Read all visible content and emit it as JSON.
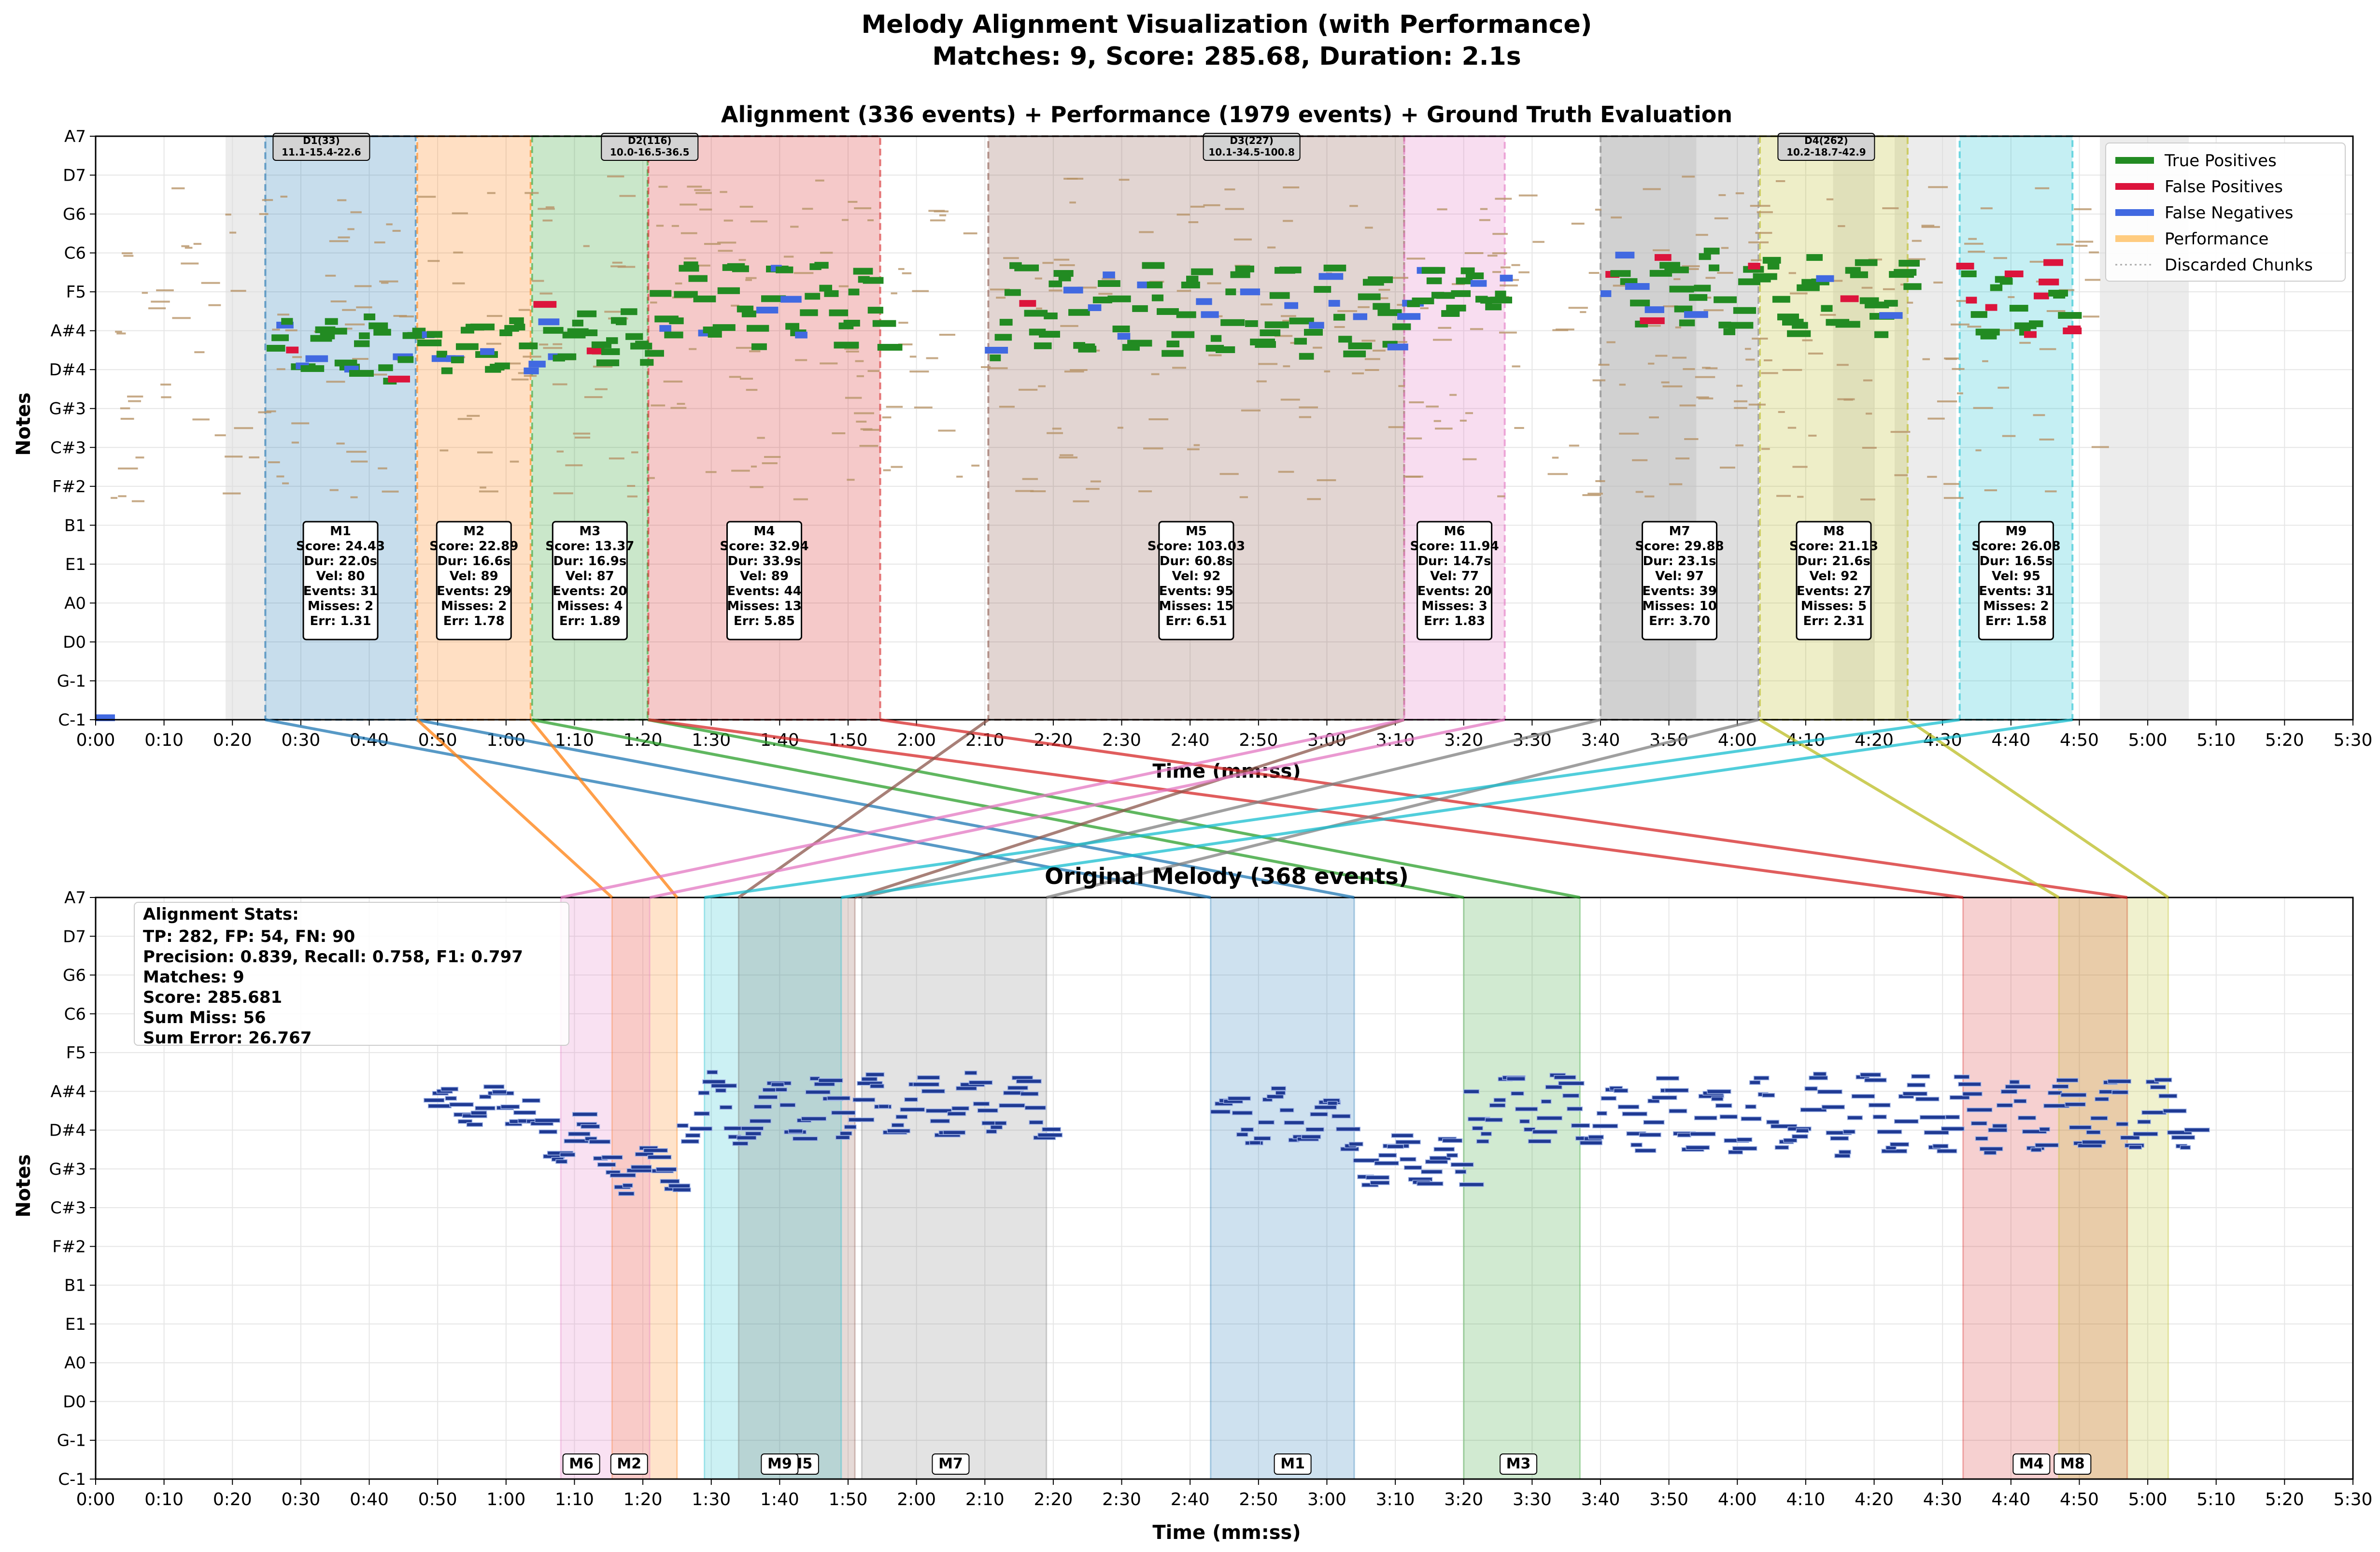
{
  "suptitle": [
    "Melody Alignment Visualization (with Performance)",
    "Matches: 9, Score: 285.68, Duration: 2.1s"
  ],
  "colors": {
    "tp": "#228B22",
    "fp": "#DC143C",
    "fn": "#4169E1",
    "perf": "#FFCC80",
    "discard_fill": "#d9d9d9",
    "melody": "#1f3a93",
    "match_palette": [
      "#1f77b4",
      "#ff7f0e",
      "#2ca02c",
      "#d62728",
      "#8c564b",
      "#e377c2",
      "#7f7f7f",
      "#bcbd22",
      "#17becf"
    ]
  },
  "chart_data": [
    {
      "type": "piano-roll",
      "title": "Alignment (336 events) + Performance (1979 events) + Ground Truth Evaluation",
      "xlabel": "Time (mm:ss)",
      "ylabel": "Notes",
      "xlim": [
        0,
        330
      ],
      "x_ticks": [
        "0:00",
        "0:10",
        "0:20",
        "0:30",
        "0:40",
        "0:50",
        "1:00",
        "1:10",
        "1:20",
        "1:30",
        "1:40",
        "1:50",
        "2:00",
        "2:10",
        "2:20",
        "2:30",
        "2:40",
        "2:50",
        "3:00",
        "3:10",
        "3:20",
        "3:30",
        "3:40",
        "3:50",
        "4:00",
        "4:10",
        "4:20",
        "4:30",
        "4:40",
        "4:50",
        "5:00",
        "5:10",
        "5:20",
        "5:30"
      ],
      "y_ticks": [
        "C-1",
        "G-1",
        "D0",
        "A0",
        "E1",
        "B1",
        "F#2",
        "C#3",
        "G#3",
        "D#4",
        "A#4",
        "F5",
        "C6",
        "G6",
        "D7",
        "A7"
      ],
      "grid": true,
      "legend": {
        "placement": "top-right",
        "entries": [
          "True Positives",
          "False Positives",
          "False Negatives",
          "Performance",
          "Discarded Chunks"
        ]
      },
      "discarded_chunks": [
        [
          19,
          25
        ],
        [
          220,
          234
        ],
        [
          254,
          260
        ],
        [
          263,
          272
        ],
        [
          293,
          306
        ]
      ],
      "matches": [
        {
          "label": "M1",
          "start": 24.8,
          "end": 46.8,
          "score": "24.43",
          "dur": "22.0s",
          "vel": "80",
          "events": "31",
          "misses": "2",
          "err": "1.31"
        },
        {
          "label": "M2",
          "start": 47.0,
          "end": 63.6,
          "score": "22.89",
          "dur": "16.6s",
          "vel": "89",
          "events": "29",
          "misses": "2",
          "err": "1.78"
        },
        {
          "label": "M3",
          "start": 63.8,
          "end": 80.7,
          "score": "13.37",
          "dur": "16.9s",
          "vel": "87",
          "events": "20",
          "misses": "4",
          "err": "1.89"
        },
        {
          "label": "M4",
          "start": 80.8,
          "end": 114.7,
          "score": "32.94",
          "dur": "33.9s",
          "vel": "89",
          "events": "44",
          "misses": "13",
          "err": "5.85"
        },
        {
          "label": "M5",
          "start": 130.5,
          "end": 191.3,
          "score": "103.03",
          "dur": "60.8s",
          "vel": "92",
          "events": "95",
          "misses": "15",
          "err": "6.51"
        },
        {
          "label": "M6",
          "start": 191.3,
          "end": 206.0,
          "score": "11.94",
          "dur": "14.7s",
          "vel": "77",
          "events": "20",
          "misses": "3",
          "err": "1.83"
        },
        {
          "label": "M7",
          "start": 220.0,
          "end": 243.1,
          "score": "29.88",
          "dur": "23.1s",
          "vel": "97",
          "events": "39",
          "misses": "10",
          "err": "3.70"
        },
        {
          "label": "M8",
          "start": 243.3,
          "end": 264.9,
          "score": "21.13",
          "dur": "21.6s",
          "vel": "92",
          "events": "27",
          "misses": "5",
          "err": "2.31"
        },
        {
          "label": "M9",
          "start": 272.5,
          "end": 289.0,
          "score": "26.08",
          "dur": "16.5s",
          "vel": "95",
          "events": "31",
          "misses": "2",
          "err": "1.58"
        }
      ],
      "dividers": [
        {
          "label": "D1(33)",
          "sub": "11.1-15.4-22.6",
          "x": 33
        },
        {
          "label": "D2(116)",
          "sub": "10.0-16.5-36.5",
          "x": 81
        },
        {
          "label": "D3(227)",
          "sub": "10.1-34.5-100.8",
          "x": 169
        },
        {
          "label": "D4(262)",
          "sub": "10.2-18.7-42.9",
          "x": 253
        }
      ]
    },
    {
      "type": "piano-roll",
      "title": "Original Melody (368 events)",
      "xlabel": "Time (mm:ss)",
      "ylabel": "Notes",
      "xlim": [
        0,
        330
      ],
      "grid": true,
      "stats_title": "Alignment Stats:",
      "stats": [
        "TP: 282, FP: 54, FN: 90",
        "Precision: 0.839, Recall: 0.758, F1: 0.797",
        "Matches: 9",
        "Score: 285.681",
        "Sum Miss: 56",
        "Sum Error: 26.767"
      ],
      "melody_regions": [
        {
          "label": "M1",
          "start": 163.0,
          "end": 184.0,
          "tag_x": 175
        },
        {
          "label": "M2",
          "start": 75.5,
          "end": 85.0,
          "tag_x": 78
        },
        {
          "label": "M3",
          "start": 200.0,
          "end": 217.0,
          "tag_x": 208
        },
        {
          "label": "M4",
          "start": 273.0,
          "end": 297.0,
          "tag_x": 283
        },
        {
          "label": "M5",
          "start": 94.0,
          "end": 111.0,
          "tag_x": 103
        },
        {
          "label": "M6",
          "start": 68.0,
          "end": 81.0,
          "tag_x": 71
        },
        {
          "label": "M7",
          "start": 112.0,
          "end": 139.0,
          "tag_x": 125
        },
        {
          "label": "M8",
          "start": 287.0,
          "end": 303.0,
          "tag_x": 289
        },
        {
          "label": "M9",
          "start": 89.0,
          "end": 109.0,
          "tag_x": 100
        }
      ]
    }
  ]
}
